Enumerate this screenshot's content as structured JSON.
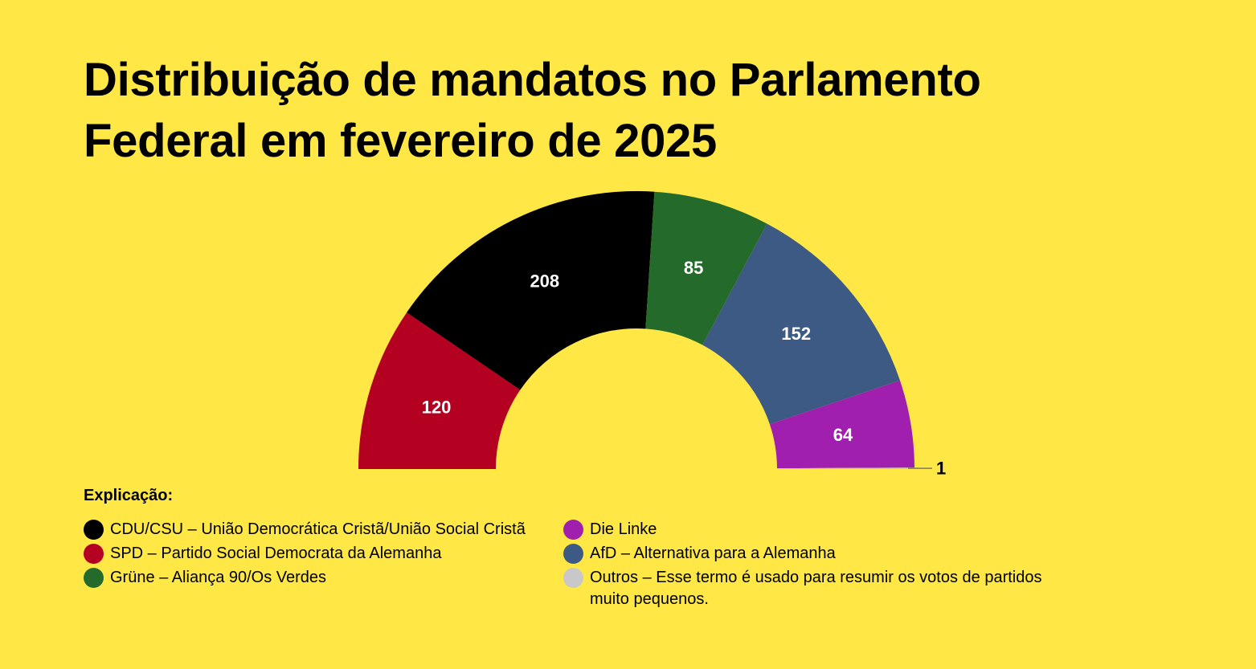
{
  "title_lines": [
    "Distribuição de mandatos no Parlamento",
    "Federal em fevereiro de 2025"
  ],
  "chart_data": {
    "type": "pie",
    "variant": "semicircle",
    "title": "Distribuição de mandatos no Parlamento Federal em fevereiro de 2025",
    "slices": [
      {
        "label": "SPD",
        "value": 120,
        "color": "#B40021"
      },
      {
        "label": "CDU/CSU",
        "value": 208,
        "color": "#000000"
      },
      {
        "label": "Grüne",
        "value": 85,
        "color": "#246B2B"
      },
      {
        "label": "AfD",
        "value": 152,
        "color": "#3C5A84"
      },
      {
        "label": "Die Linke",
        "value": 64,
        "color": "#A11FAF"
      },
      {
        "label": "Outros",
        "value": 1,
        "color": "#C8C8C8"
      }
    ]
  },
  "legend": {
    "title": "Explicação:",
    "left": [
      {
        "text": "CDU/CSU – União Democrática Cristã/União Social Cristã",
        "color": "#000000"
      },
      {
        "text": "SPD – Partido Social Democrata da Alemanha",
        "color": "#B40021"
      },
      {
        "text": "Grüne – Aliança 90/Os Verdes",
        "color": "#246B2B"
      }
    ],
    "right": [
      {
        "text": "Die Linke",
        "color": "#A11FAF"
      },
      {
        "text": "AfD – Alternativa para a Alemanha",
        "color": "#3C5A84"
      },
      {
        "text": "Outros – Esse termo é usado para resumir os votos de partidos muito pequenos.",
        "color": "#C8C8C8"
      }
    ]
  }
}
